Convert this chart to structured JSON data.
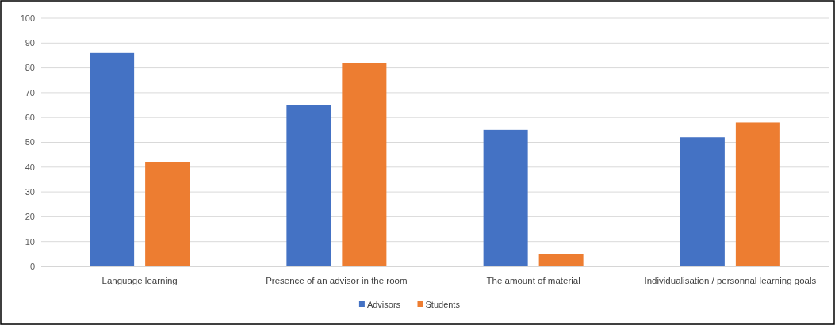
{
  "chart_data": {
    "type": "bar",
    "categories": [
      "Language learning",
      "Presence of an advisor in the room",
      "The amount of material",
      "Individualisation / personnal learning goals"
    ],
    "series": [
      {
        "name": "Advisors",
        "color": "#4472c4",
        "values": [
          86,
          65,
          55,
          52
        ]
      },
      {
        "name": "Students",
        "color": "#ed7d31",
        "values": [
          42,
          82,
          5,
          58
        ]
      }
    ],
    "ylim": [
      0,
      100
    ],
    "yticks": [
      0,
      10,
      20,
      30,
      40,
      50,
      60,
      70,
      80,
      90,
      100
    ],
    "grid": "y",
    "legend": "bottom"
  }
}
